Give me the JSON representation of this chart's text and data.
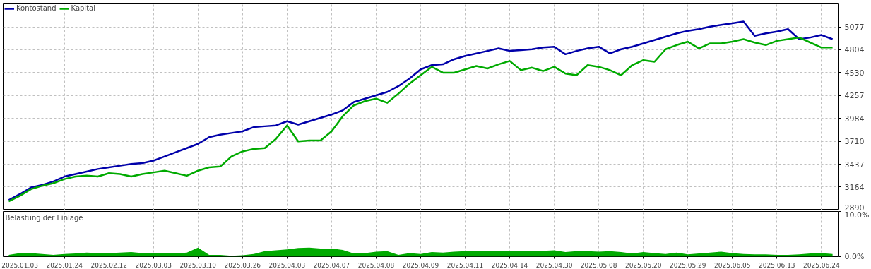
{
  "chart_data": [
    {
      "type": "line",
      "legend": "top left",
      "grid": true,
      "tick_labels": "y",
      "line_style": "solid",
      "ylim": [
        2890,
        5360
      ],
      "categories": [
        null,
        "2025.01.03",
        null,
        null,
        null,
        "2025.01.24",
        null,
        null,
        null,
        "2025.02.12",
        null,
        null,
        null,
        "2025.03.03",
        null,
        null,
        null,
        "2025.03.10",
        null,
        null,
        null,
        "2025.03.26",
        null,
        null,
        null,
        "2025.04.03",
        null,
        null,
        null,
        "2025.04.07",
        null,
        null,
        null,
        "2025.04.08",
        null,
        null,
        null,
        "2025.04.09",
        null,
        null,
        null,
        "2025.04.11",
        null,
        null,
        null,
        "2025.04.14",
        null,
        null,
        null,
        "2025.04.30",
        null,
        null,
        null,
        "2025.05.08",
        null,
        null,
        null,
        "2025.05.20",
        null,
        null,
        null,
        "2025.05.29",
        null,
        null,
        null,
        "2025.06.05",
        null,
        null,
        null,
        "2025.06.13",
        null,
        null,
        null,
        "2025.06.24",
        null
      ],
      "yticks": [
        2890,
        3164,
        3437,
        3710,
        3984,
        4257,
        4530,
        4804,
        5077
      ],
      "series": [
        {
          "name": "Kontostand",
          "color": "#0000aa",
          "values": [
            3010,
            3080,
            3160,
            3190,
            3230,
            3290,
            3320,
            3350,
            3380,
            3400,
            3420,
            3440,
            3450,
            3480,
            3530,
            3580,
            3630,
            3680,
            3760,
            3790,
            3810,
            3830,
            3880,
            3890,
            3900,
            3950,
            3910,
            3950,
            3990,
            4030,
            4080,
            4180,
            4220,
            4260,
            4300,
            4370,
            4460,
            4570,
            4620,
            4630,
            4690,
            4730,
            4760,
            4790,
            4820,
            4790,
            4800,
            4810,
            4830,
            4840,
            4750,
            4790,
            4820,
            4840,
            4760,
            4810,
            4840,
            4880,
            4920,
            4960,
            5000,
            5030,
            5050,
            5080,
            5100,
            5120,
            5140,
            4970,
            5000,
            5020,
            5050,
            4930,
            4950,
            4980,
            4930
          ]
        },
        {
          "name": "Kapital",
          "color": "#00aa00",
          "values": [
            2995,
            3060,
            3140,
            3180,
            3210,
            3260,
            3290,
            3300,
            3290,
            3330,
            3320,
            3290,
            3320,
            3340,
            3360,
            3330,
            3300,
            3360,
            3400,
            3410,
            3530,
            3590,
            3620,
            3630,
            3740,
            3900,
            3710,
            3720,
            3720,
            3830,
            4010,
            4140,
            4190,
            4220,
            4170,
            4280,
            4400,
            4500,
            4600,
            4530,
            4530,
            4570,
            4610,
            4580,
            4630,
            4670,
            4560,
            4590,
            4550,
            4600,
            4520,
            4500,
            4620,
            4600,
            4560,
            4500,
            4620,
            4680,
            4660,
            4810,
            4860,
            4900,
            4820,
            4880,
            4880,
            4900,
            4930,
            4890,
            4860,
            4910,
            4930,
            4950,
            4890,
            4830,
            4830
          ]
        }
      ]
    },
    {
      "type": "area",
      "title": "Belastung der Einlage",
      "grid": "x",
      "ylim": [
        0,
        10
      ],
      "categories": [
        null,
        "2025.01.03",
        null,
        null,
        null,
        "2025.01.24",
        null,
        null,
        null,
        "2025.02.12",
        null,
        null,
        null,
        "2025.03.03",
        null,
        null,
        null,
        "2025.03.10",
        null,
        null,
        null,
        "2025.03.26",
        null,
        null,
        null,
        "2025.04.03",
        null,
        null,
        null,
        "2025.04.07",
        null,
        null,
        null,
        "2025.04.08",
        null,
        null,
        null,
        "2025.04.09",
        null,
        null,
        null,
        "2025.04.11",
        null,
        null,
        null,
        "2025.04.14",
        null,
        null,
        null,
        "2025.04.30",
        null,
        null,
        null,
        "2025.05.08",
        null,
        null,
        null,
        "2025.05.20",
        null,
        null,
        null,
        "2025.05.29",
        null,
        null,
        null,
        "2025.06.05",
        null,
        null,
        null,
        "2025.06.13",
        null,
        null,
        null,
        "2025.06.24",
        null
      ],
      "yticks": [
        {
          "value": 0,
          "label": "0.0%"
        },
        {
          "value": 10,
          "label": "10.0%"
        }
      ],
      "series": [
        {
          "color": "#00aa00",
          "values": [
            0.4,
            0.8,
            0.8,
            0.6,
            0.4,
            0.6,
            0.7,
            0.9,
            0.8,
            0.8,
            0.9,
            1.0,
            0.8,
            0.8,
            0.7,
            0.7,
            0.9,
            2.0,
            0.4,
            0.4,
            0.2,
            0.3,
            0.6,
            1.2,
            1.4,
            1.6,
            1.9,
            2.0,
            1.8,
            1.8,
            1.5,
            0.7,
            0.8,
            1.1,
            1.2,
            0.4,
            0.8,
            0.6,
            1.0,
            0.9,
            1.1,
            1.2,
            1.2,
            1.3,
            1.2,
            1.2,
            1.3,
            1.3,
            1.3,
            1.4,
            1.0,
            1.2,
            1.2,
            1.1,
            1.2,
            1.0,
            0.7,
            1.0,
            0.8,
            0.6,
            0.9,
            0.5,
            0.7,
            0.9,
            1.1,
            0.8,
            0.6,
            0.5,
            0.5,
            0.4,
            0.4,
            0.5,
            0.7,
            0.8,
            0.6
          ]
        }
      ]
    }
  ]
}
